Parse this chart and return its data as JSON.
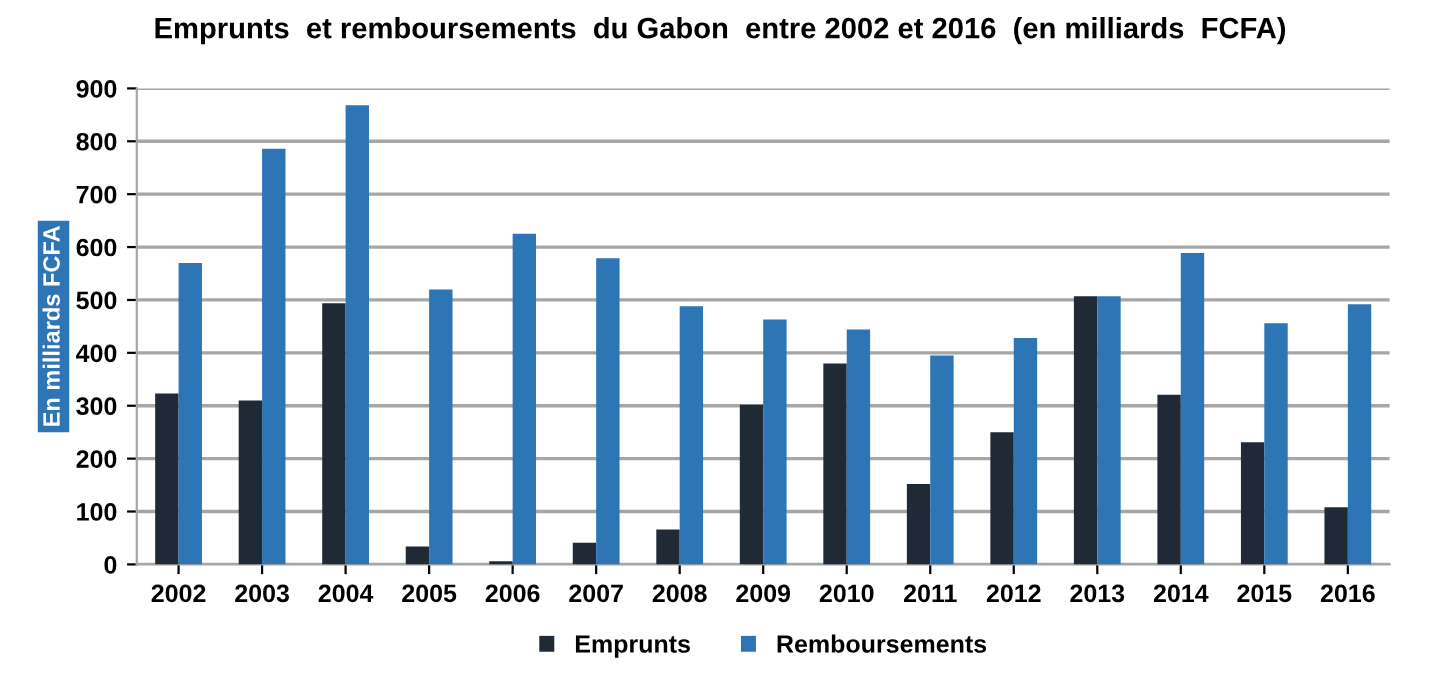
{
  "chart_data": {
    "type": "bar",
    "title": "Emprunts  et remboursements  du Gabon  entre 2002 et 2016  (en milliards  FCFA)",
    "ylabel": "En milliards FCFA",
    "categories": [
      "2002",
      "2003",
      "2004",
      "2005",
      "2006",
      "2007",
      "2008",
      "2009",
      "2010",
      "2011",
      "2012",
      "2013",
      "2014",
      "2015",
      "2016"
    ],
    "series": [
      {
        "name": "Emprunts",
        "color": "#1f2a36",
        "values": [
          323,
          310,
          494,
          34,
          6,
          41,
          66,
          302,
          380,
          152,
          250,
          507,
          321,
          231,
          108
        ]
      },
      {
        "name": "Remboursements",
        "color": "#2e75b6",
        "values": [
          570,
          786,
          868,
          520,
          625,
          579,
          488,
          463,
          444,
          395,
          428,
          507,
          589,
          456,
          492
        ]
      }
    ],
    "ylim": [
      0,
      900
    ],
    "yticks": [
      0,
      100,
      200,
      300,
      400,
      500,
      600,
      700,
      800,
      900
    ],
    "grid": "y",
    "legend": "bottom"
  }
}
